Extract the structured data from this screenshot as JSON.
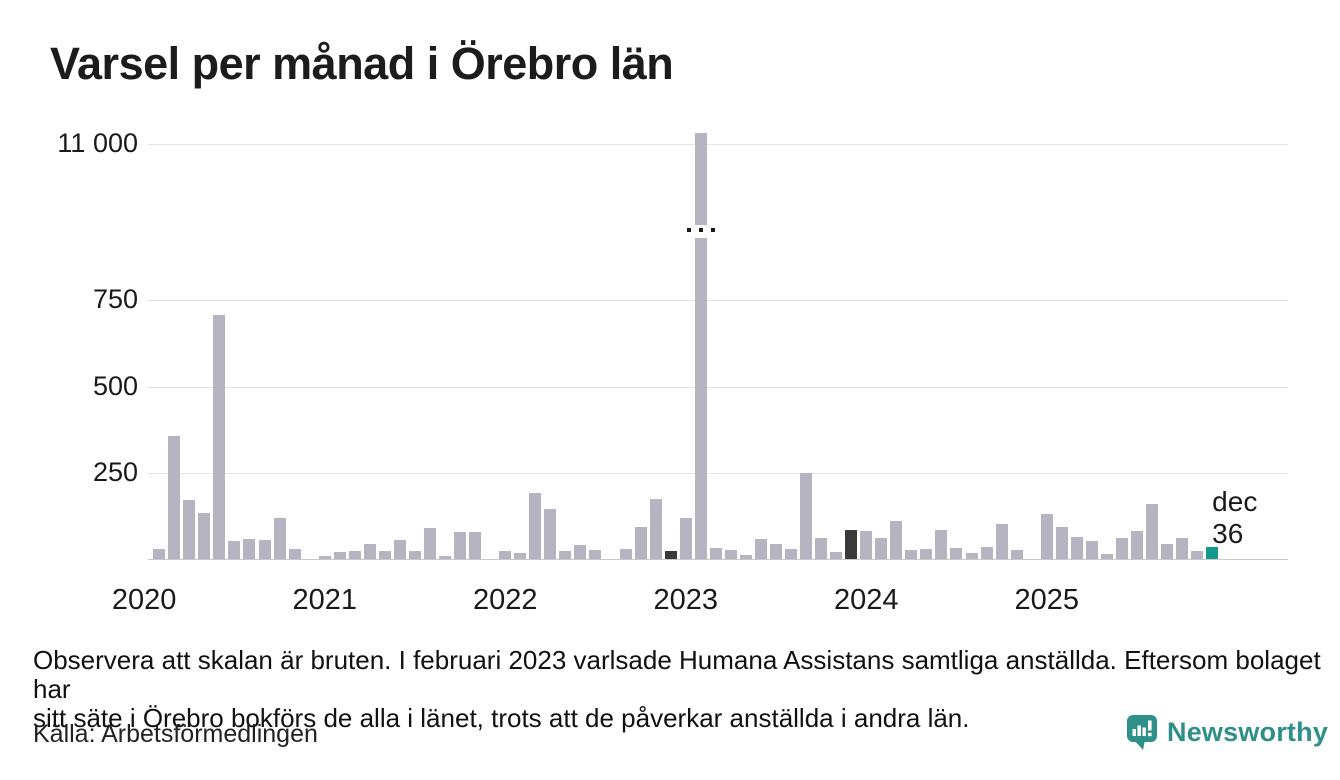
{
  "title": "Varsel per månad i Örebro län",
  "y_tick_labels": [
    "11 000",
    "750",
    "500",
    "250"
  ],
  "year_labels": [
    "2020",
    "2021",
    "2022",
    "2023",
    "2024",
    "2025"
  ],
  "annotation": {
    "month_label": "dec",
    "value_label": "36"
  },
  "note": {
    "line1": "Observera att skalan är bruten. I februari 2023 varlsade Humana Assistans samtliga anställda. Eftersom bolaget har",
    "line2": "sitt säte i Örebro bokförs de alla i länet, trots att de påverkar anställda i andra län."
  },
  "source": "Källa: Arbetsförmedlingen",
  "brand_name": "Newsworthy",
  "colors": {
    "bar_default": "#b7b4c1",
    "bar_dark": "#3a3a3a",
    "bar_teal": "#14998c",
    "brand_teal": "#2f908a",
    "grid": "#e4e4e7",
    "axis": "#c9c9cc",
    "text": "#1a1a1a"
  },
  "chart_data": {
    "type": "bar",
    "title": "Varsel per månad i Örebro län",
    "xlabel": "",
    "ylabel": "",
    "y_ticks": [
      250,
      500,
      750,
      11000
    ],
    "y_axis_broken_between": [
      750,
      11000
    ],
    "grid": "horizontal",
    "legend": "none",
    "months": [
      "2020-01",
      "2020-02",
      "2020-03",
      "2020-04",
      "2020-05",
      "2020-06",
      "2020-07",
      "2020-08",
      "2020-09",
      "2020-10",
      "2020-11",
      "2020-12",
      "2021-01",
      "2021-02",
      "2021-03",
      "2021-04",
      "2021-05",
      "2021-06",
      "2021-07",
      "2021-08",
      "2021-09",
      "2021-10",
      "2021-11",
      "2021-12",
      "2022-01",
      "2022-02",
      "2022-03",
      "2022-04",
      "2022-05",
      "2022-06",
      "2022-07",
      "2022-08",
      "2022-09",
      "2022-10",
      "2022-11",
      "2022-12",
      "2023-01",
      "2023-02",
      "2023-03",
      "2023-04",
      "2023-05",
      "2023-06",
      "2023-07",
      "2023-08",
      "2023-09",
      "2023-10",
      "2023-11",
      "2023-12",
      "2024-01",
      "2024-02",
      "2024-03",
      "2024-04",
      "2024-05",
      "2024-06",
      "2024-07",
      "2024-08",
      "2024-09",
      "2024-10",
      "2024-11",
      "2024-12",
      "2025-01",
      "2025-02",
      "2025-03",
      "2025-04",
      "2025-05",
      "2025-06",
      "2025-07",
      "2025-08",
      "2025-09",
      "2025-10",
      "2025-11",
      "2025-12"
    ],
    "values": [
      0,
      30,
      355,
      170,
      133,
      705,
      52,
      57,
      54,
      117,
      28,
      0,
      10,
      19,
      24,
      43,
      22,
      56,
      22,
      89,
      8,
      79,
      79,
      0,
      23,
      17,
      190,
      143,
      22,
      41,
      26,
      0,
      29,
      91,
      173,
      24,
      117,
      11200,
      31,
      25,
      12,
      59,
      44,
      30,
      247,
      61,
      19,
      83,
      80,
      60,
      111,
      25,
      30,
      85,
      32,
      16,
      35,
      102,
      27,
      0,
      129,
      91,
      63,
      53,
      13,
      60,
      82,
      160,
      44,
      61,
      24,
      36
    ],
    "highlighted_dark_months": [
      "2022-12",
      "2023-12"
    ],
    "highlighted_teal_month": "2025-12",
    "broken_bar": {
      "month": "2023-02",
      "approx_value": 11200,
      "note": "scale broken, bar exceeds 11 000"
    },
    "last_point_label": {
      "month": "2025-12",
      "text": "dec",
      "value": 36
    }
  }
}
